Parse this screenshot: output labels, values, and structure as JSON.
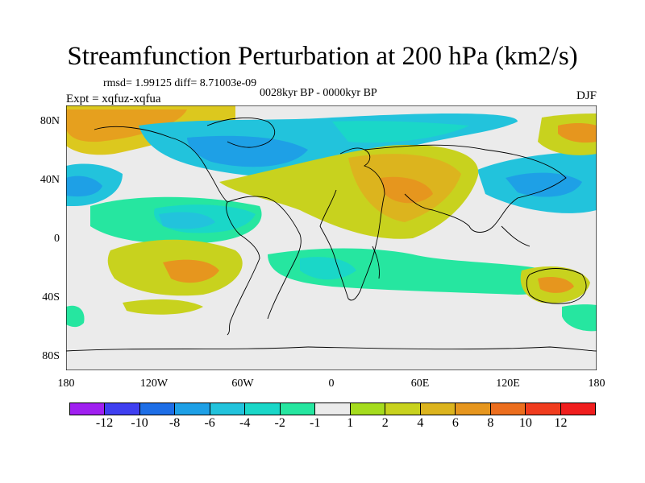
{
  "title": "Streamfunction Perturbation at 200 hPa (km2/s)",
  "stats": "rmsd= 1.99125 diff= 8.71003e-09",
  "period": "0028kyr BP - 0000kyr BP",
  "experiment": "Expt = xqfuz-xqfua",
  "season": "DJF",
  "map": {
    "type": "contour-filled",
    "projection": "cylindrical equidistant",
    "variable": "200 hPa streamfunction perturbation",
    "units": "km2/s",
    "lon_range": [
      -180,
      180
    ],
    "lat_range": [
      -90,
      90
    ],
    "lat_tick_labels": [
      "80N",
      "40N",
      "0",
      "40S",
      "80S"
    ],
    "lon_tick_labels": [
      "180",
      "120W",
      "60W",
      "0",
      "60E",
      "120E",
      "180"
    ],
    "coastlines": true
  },
  "colorbar": {
    "levels": [
      "-12",
      "-10",
      "-8",
      "-6",
      "-4",
      "-2",
      "-1",
      "1",
      "2",
      "4",
      "6",
      "8",
      "10",
      "12"
    ],
    "colors": [
      "#a020f0",
      "#3f3ff0",
      "#1e6ee6",
      "#1ea0e6",
      "#22c3dc",
      "#1ad7c8",
      "#26e6a0",
      "#ebebeb",
      "#a5dc1e",
      "#c8d21e",
      "#dcb41e",
      "#e6961e",
      "#ec6e1e",
      "#f03c1e",
      "#f01e1e"
    ]
  },
  "colors": {
    "land_fill_neutral": "#ebebeb",
    "coastline": "#000000"
  }
}
